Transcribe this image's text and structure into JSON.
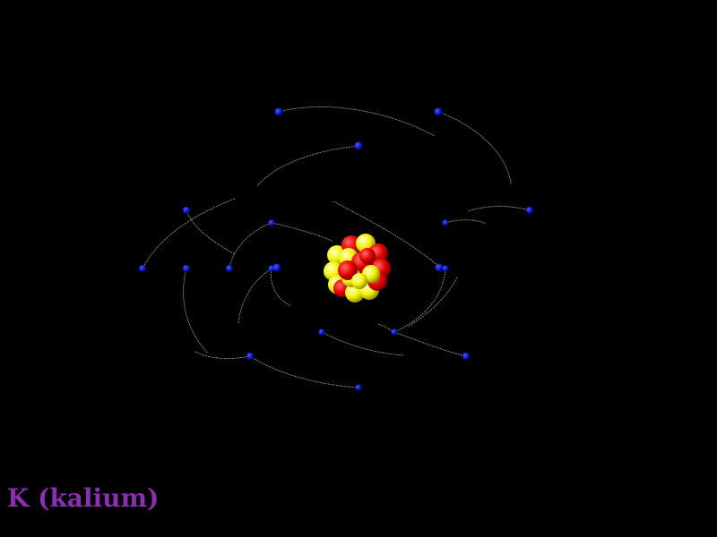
{
  "label": "K (kalium)",
  "colors": {
    "background": "#000000",
    "electron": "#0a1acc",
    "orbit": "#bfbfbf",
    "proton": "#e60000",
    "neutron": "#f2f20a",
    "label": "#8a2fb0"
  }
}
